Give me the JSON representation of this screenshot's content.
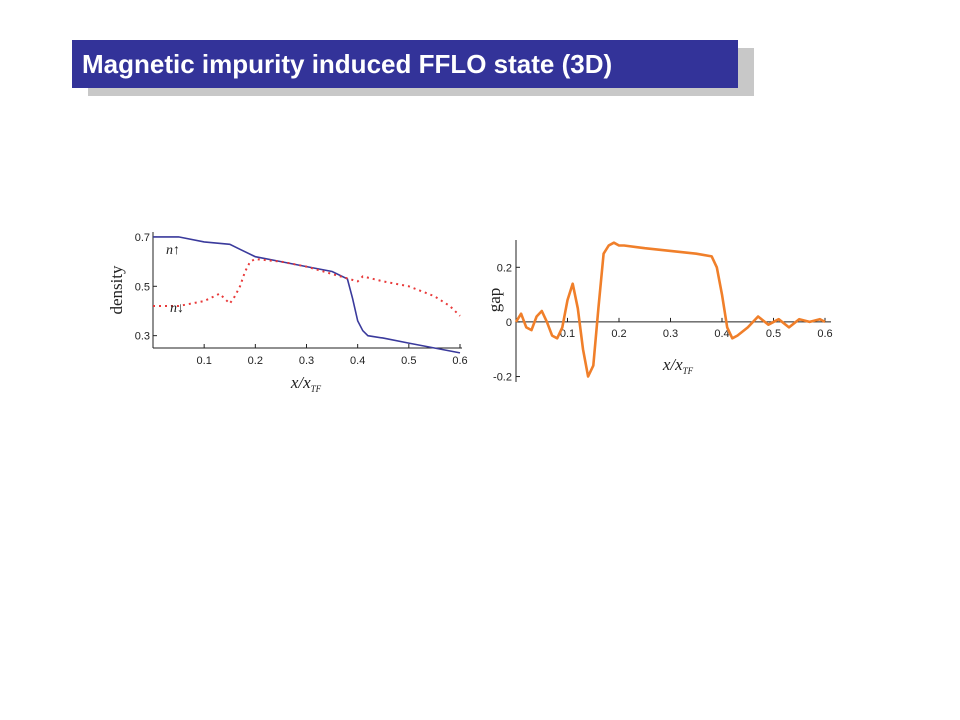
{
  "slide": {
    "title": "Magnetic impurity induced FFLO state (3D)"
  },
  "colors": {
    "title_bg": "#333399",
    "title_text": "#ffffff",
    "title_shadow": "#c8c8c8",
    "n_up": "#3a3a9c",
    "n_down": "#e83a3a",
    "gap": "#f07f2a"
  },
  "chart_data": [
    {
      "type": "line",
      "xlabel": "x/x_TF",
      "ylabel": "density",
      "xlim": [
        0,
        0.6
      ],
      "ylim": [
        0.25,
        0.72
      ],
      "xticks": [
        "0.1",
        "0.2",
        "0.3",
        "0.4",
        "0.5",
        "0.6"
      ],
      "yticks": [
        "0.7",
        "0.5",
        "0.3"
      ],
      "series": [
        {
          "name": "n↑",
          "style": "solid",
          "x": [
            0.0,
            0.05,
            0.1,
            0.15,
            0.17,
            0.2,
            0.25,
            0.3,
            0.35,
            0.38,
            0.39,
            0.4,
            0.41,
            0.42,
            0.45,
            0.5,
            0.55,
            0.6
          ],
          "y": [
            0.7,
            0.7,
            0.68,
            0.67,
            0.65,
            0.62,
            0.6,
            0.58,
            0.56,
            0.53,
            0.45,
            0.36,
            0.32,
            0.3,
            0.29,
            0.27,
            0.25,
            0.23
          ]
        },
        {
          "name": "n↓",
          "style": "dotted",
          "x": [
            0.0,
            0.05,
            0.1,
            0.13,
            0.15,
            0.16,
            0.17,
            0.18,
            0.19,
            0.2,
            0.25,
            0.3,
            0.35,
            0.4,
            0.41,
            0.45,
            0.5,
            0.55,
            0.58,
            0.6
          ],
          "y": [
            0.42,
            0.42,
            0.44,
            0.47,
            0.43,
            0.46,
            0.5,
            0.56,
            0.6,
            0.61,
            0.6,
            0.58,
            0.55,
            0.52,
            0.54,
            0.52,
            0.5,
            0.46,
            0.42,
            0.38
          ]
        }
      ]
    },
    {
      "type": "line",
      "xlabel": "x/x_TF",
      "ylabel": "gap",
      "xlim": [
        0,
        0.6
      ],
      "ylim": [
        -0.22,
        0.3
      ],
      "xticks": [
        "0.1",
        "0.2",
        "0.3",
        "0.4",
        "0.5",
        "0.6"
      ],
      "yticks": [
        "0.2",
        "0",
        "-0.2"
      ],
      "series": [
        {
          "name": "gap",
          "style": "solid",
          "x": [
            0.0,
            0.01,
            0.02,
            0.03,
            0.04,
            0.05,
            0.06,
            0.07,
            0.08,
            0.09,
            0.1,
            0.11,
            0.12,
            0.13,
            0.14,
            0.15,
            0.16,
            0.17,
            0.18,
            0.19,
            0.2,
            0.21,
            0.25,
            0.3,
            0.35,
            0.38,
            0.39,
            0.4,
            0.41,
            0.42,
            0.43,
            0.45,
            0.47,
            0.49,
            0.51,
            0.53,
            0.55,
            0.57,
            0.59,
            0.6
          ],
          "y": [
            0.0,
            0.03,
            -0.02,
            -0.03,
            0.02,
            0.04,
            0.0,
            -0.05,
            -0.06,
            -0.02,
            0.08,
            0.14,
            0.05,
            -0.1,
            -0.2,
            -0.16,
            0.05,
            0.25,
            0.28,
            0.29,
            0.28,
            0.28,
            0.27,
            0.26,
            0.25,
            0.24,
            0.2,
            0.1,
            -0.02,
            -0.06,
            -0.05,
            -0.02,
            0.02,
            -0.01,
            0.01,
            -0.02,
            0.01,
            0.0,
            0.01,
            0.0
          ]
        }
      ]
    }
  ]
}
